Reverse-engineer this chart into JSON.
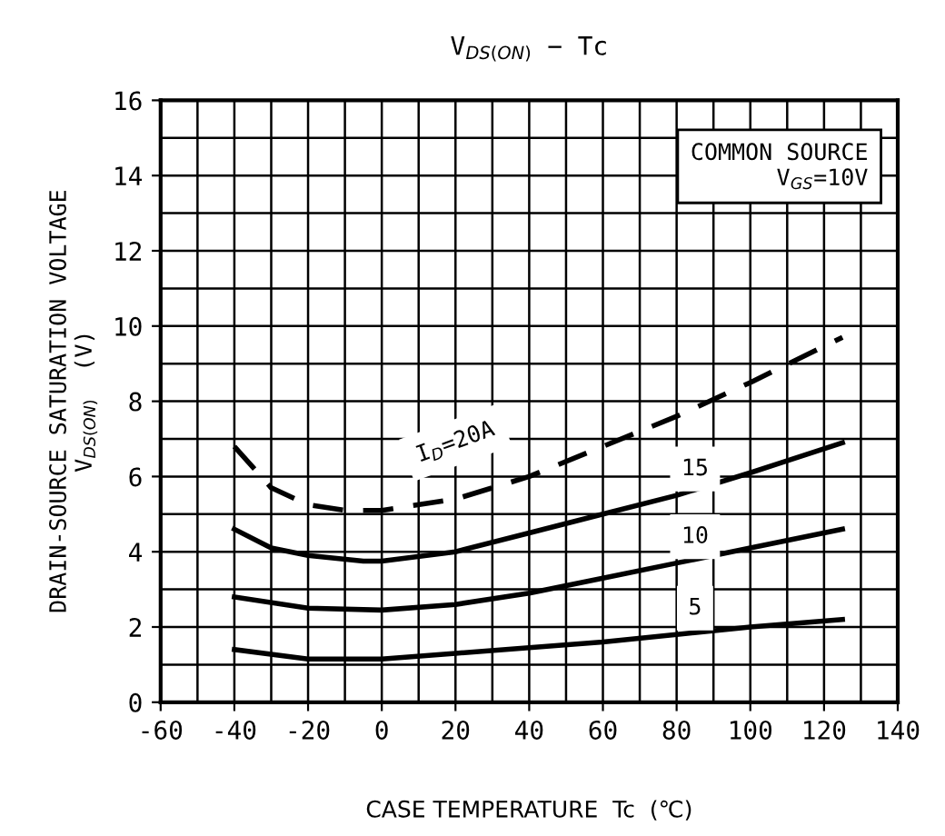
{
  "chart_data": {
    "type": "line",
    "title": "V$_{DS(ON)}$ − Tc",
    "xlabel": "CASE TEMPERATURE  Tc  (℃)",
    "ylabel": "DRAIN-SOURCE SATURATION VOLTAGE\nV$_{DS(ON)}$  (V)",
    "annotations": [
      "COMMON SOURCE\nV$_{GS}$=10V"
    ],
    "xlim": [
      -60,
      140
    ],
    "ylim": [
      0,
      16
    ],
    "xticks": [
      -60,
      -40,
      -20,
      0,
      20,
      40,
      60,
      80,
      100,
      120,
      140
    ],
    "yticks": [
      0,
      2,
      4,
      6,
      8,
      10,
      12,
      14,
      16
    ],
    "grid": true,
    "marker": "none",
    "series": [
      {
        "name": "I$_{D}$=20A",
        "color": "#000000",
        "line_style": "dashed",
        "x": [
          -40,
          -30,
          -20,
          -10,
          0,
          20,
          40,
          60,
          80,
          100,
          125
        ],
        "values": [
          6.8,
          5.7,
          5.25,
          5.1,
          5.1,
          5.4,
          6.0,
          6.8,
          7.6,
          8.5,
          9.7
        ]
      },
      {
        "name": "15",
        "color": "#000000",
        "line_style": "solid",
        "x": [
          -40,
          -30,
          -20,
          -5,
          0,
          20,
          40,
          60,
          80,
          100,
          125
        ],
        "values": [
          4.6,
          4.1,
          3.9,
          3.75,
          3.75,
          4.0,
          4.5,
          5.0,
          5.5,
          6.1,
          6.9
        ]
      },
      {
        "name": "10",
        "color": "#000000",
        "line_style": "solid",
        "x": [
          -40,
          -20,
          0,
          20,
          40,
          60,
          80,
          100,
          125
        ],
        "values": [
          2.8,
          2.5,
          2.45,
          2.6,
          2.9,
          3.3,
          3.7,
          4.1,
          4.6
        ]
      },
      {
        "name": "5",
        "color": "#000000",
        "line_style": "solid",
        "x": [
          -40,
          -20,
          0,
          20,
          40,
          60,
          80,
          100,
          125
        ],
        "values": [
          1.4,
          1.15,
          1.15,
          1.3,
          1.45,
          1.6,
          1.8,
          2.0,
          2.2
        ]
      }
    ]
  }
}
